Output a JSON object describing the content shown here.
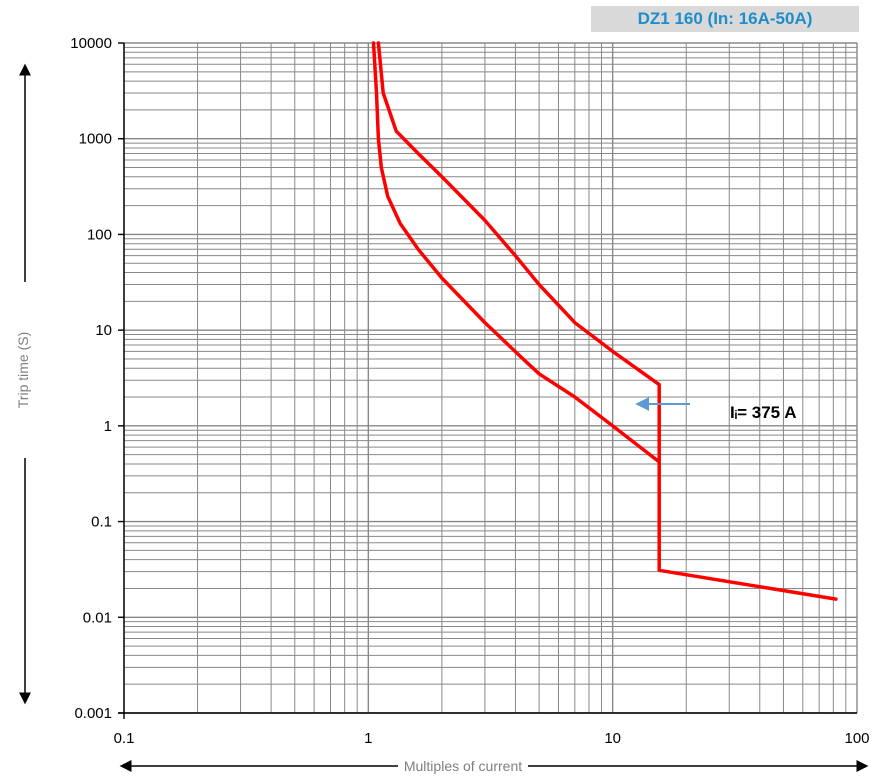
{
  "chart_data": {
    "type": "line",
    "title": "DZ1 160 (In: 16A-50A)",
    "xlabel": "Multiples of current",
    "ylabel": "Trip time (S)",
    "x_scale": "log",
    "y_scale": "log",
    "xlim": [
      0.1,
      100
    ],
    "ylim": [
      0.001,
      10000
    ],
    "x_ticks": [
      "0.1",
      "1",
      "10",
      "100"
    ],
    "y_ticks": [
      "0.001",
      "0.01",
      "0.1",
      "1",
      "10",
      "100",
      "1000",
      "10000"
    ],
    "grid": true,
    "colors": {
      "curve": "#ff0000",
      "grid": "#888888",
      "title": "#1f8dc9",
      "arrow": "#5b9bd5"
    },
    "series": [
      {
        "points": [
          [
            1.05,
            10000
          ],
          [
            1.08,
            3000
          ],
          [
            1.1,
            1000
          ],
          [
            1.13,
            500
          ],
          [
            1.2,
            250
          ],
          [
            1.35,
            130
          ],
          [
            1.6,
            70
          ],
          [
            2,
            35
          ],
          [
            3,
            12
          ],
          [
            4.3,
            5
          ],
          [
            5,
            3.5
          ],
          [
            7,
            2
          ],
          [
            10,
            1
          ],
          [
            15.5,
            0.42
          ],
          [
            15.5,
            0.031
          ],
          [
            82,
            0.0155
          ]
        ]
      },
      {
        "points": [
          [
            1.1,
            10000
          ],
          [
            1.15,
            3000
          ],
          [
            1.3,
            1200
          ],
          [
            1.6,
            700
          ],
          [
            2,
            400
          ],
          [
            3,
            140
          ],
          [
            4,
            60
          ],
          [
            5,
            30
          ],
          [
            7,
            12
          ],
          [
            10,
            6
          ],
          [
            15.5,
            2.7
          ],
          [
            15.5,
            0.42
          ]
        ]
      }
    ],
    "annotations": [
      {
        "text": "Iᵢ= 375 A",
        "x": 12,
        "y": 1.4
      }
    ]
  }
}
